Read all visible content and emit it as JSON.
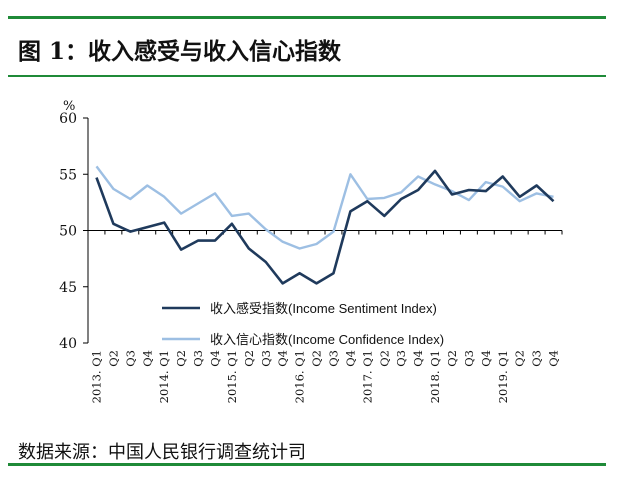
{
  "title": "图 1：收入感受与收入信心指数",
  "source": "数据来源：中国人民银行调查统计司",
  "colors": {
    "rule": "#1f8a38",
    "sentiment": "#1f3a5c",
    "confidence": "#9dbfe3",
    "axis": "#000000"
  },
  "chart_data": {
    "type": "line",
    "unit": "%",
    "ylim": [
      40,
      60
    ],
    "yticks": [
      40,
      45,
      50,
      55,
      60
    ],
    "baseline": 50,
    "x": [
      "2013. Q1",
      "Q2",
      "Q3",
      "Q4",
      "2014. Q1",
      "Q2",
      "Q3",
      "Q4",
      "2015. Q1",
      "Q2",
      "Q3",
      "Q4",
      "2016. Q1",
      "Q2",
      "Q3",
      "Q4",
      "2017. Q1",
      "Q2",
      "Q3",
      "Q4",
      "2018. Q1",
      "Q2",
      "Q3",
      "Q4",
      "2019. Q1",
      "Q2",
      "Q3",
      "Q4"
    ],
    "legend_position": "bottom-center",
    "series": [
      {
        "name": "收入感受指数(Income Sentiment Index)",
        "color": "#1f3a5c",
        "values": [
          54.7,
          50.6,
          49.9,
          50.3,
          50.7,
          48.3,
          49.1,
          49.1,
          50.6,
          48.4,
          47.2,
          45.3,
          46.2,
          45.3,
          46.2,
          51.7,
          52.6,
          51.3,
          52.8,
          53.6,
          55.3,
          53.2,
          53.6,
          53.5,
          54.8,
          53.0,
          54.0,
          52.6
        ]
      },
      {
        "name": "收入信心指数(Income Confidence Index)",
        "color": "#9dbfe3",
        "values": [
          55.7,
          53.7,
          52.8,
          54.0,
          53.0,
          51.5,
          52.4,
          53.3,
          51.3,
          51.5,
          50.1,
          49.0,
          48.4,
          48.8,
          49.9,
          55.0,
          52.8,
          52.9,
          53.4,
          54.8,
          54.1,
          53.5,
          52.7,
          54.3,
          53.9,
          52.6,
          53.3,
          53.0
        ]
      }
    ]
  }
}
